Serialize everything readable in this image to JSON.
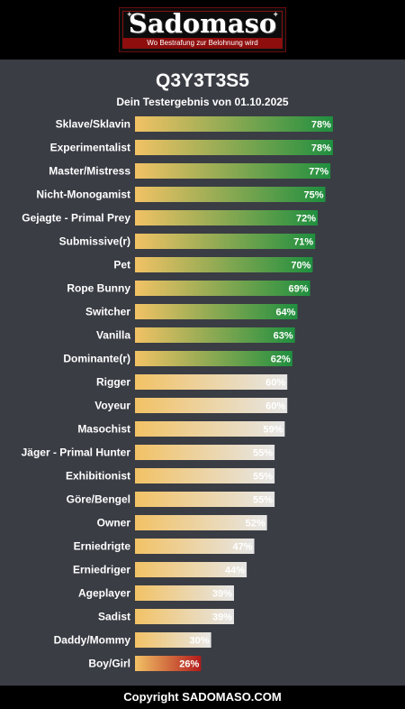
{
  "header": {
    "logo_text": "Sadomaso",
    "logo_tagline": "Wo Bestrafung zur Belohnung wird"
  },
  "chart_data": {
    "type": "bar",
    "orientation": "horizontal",
    "title": "Q3Y3T3S5",
    "subtitle": "Dein Testergebnis von 01.10.2025",
    "categories": [
      "Sklave/Sklavin",
      "Experimentalist",
      "Master/Mistress",
      "Nicht-Monogamist",
      "Gejagte - Primal Prey",
      "Submissive(r)",
      "Pet",
      "Rope Bunny",
      "Switcher",
      "Vanilla",
      "Dominante(r)",
      "Rigger",
      "Voyeur",
      "Masochist",
      "Jäger - Primal Hunter",
      "Exhibitionist",
      "Göre/Bengel",
      "Owner",
      "Erniedrigte",
      "Erniedriger",
      "Ageplayer",
      "Sadist",
      "Daddy/Mommy",
      "Boy/Girl"
    ],
    "values": [
      78,
      78,
      77,
      75,
      72,
      71,
      70,
      69,
      64,
      63,
      62,
      60,
      60,
      59,
      55,
      55,
      55,
      52,
      47,
      44,
      39,
      39,
      30,
      26
    ],
    "value_labels": [
      "78%",
      "78%",
      "77%",
      "75%",
      "72%",
      "71%",
      "70%",
      "69%",
      "64%",
      "63%",
      "62%",
      "60%",
      "60%",
      "59%",
      "55%",
      "55%",
      "55%",
      "52%",
      "47%",
      "44%",
      "39%",
      "39%",
      "30%",
      "26%"
    ],
    "xlim": [
      0,
      100
    ],
    "grid": false,
    "legend": "none",
    "colors": {
      "gradient_start": "#f2c265",
      "high_end": "#1f8f3f",
      "mid_end": "#e6e6e6",
      "low_end": "#b31b1b"
    }
  },
  "footer": {
    "copyright": "Copyright SADOMASO.COM"
  }
}
